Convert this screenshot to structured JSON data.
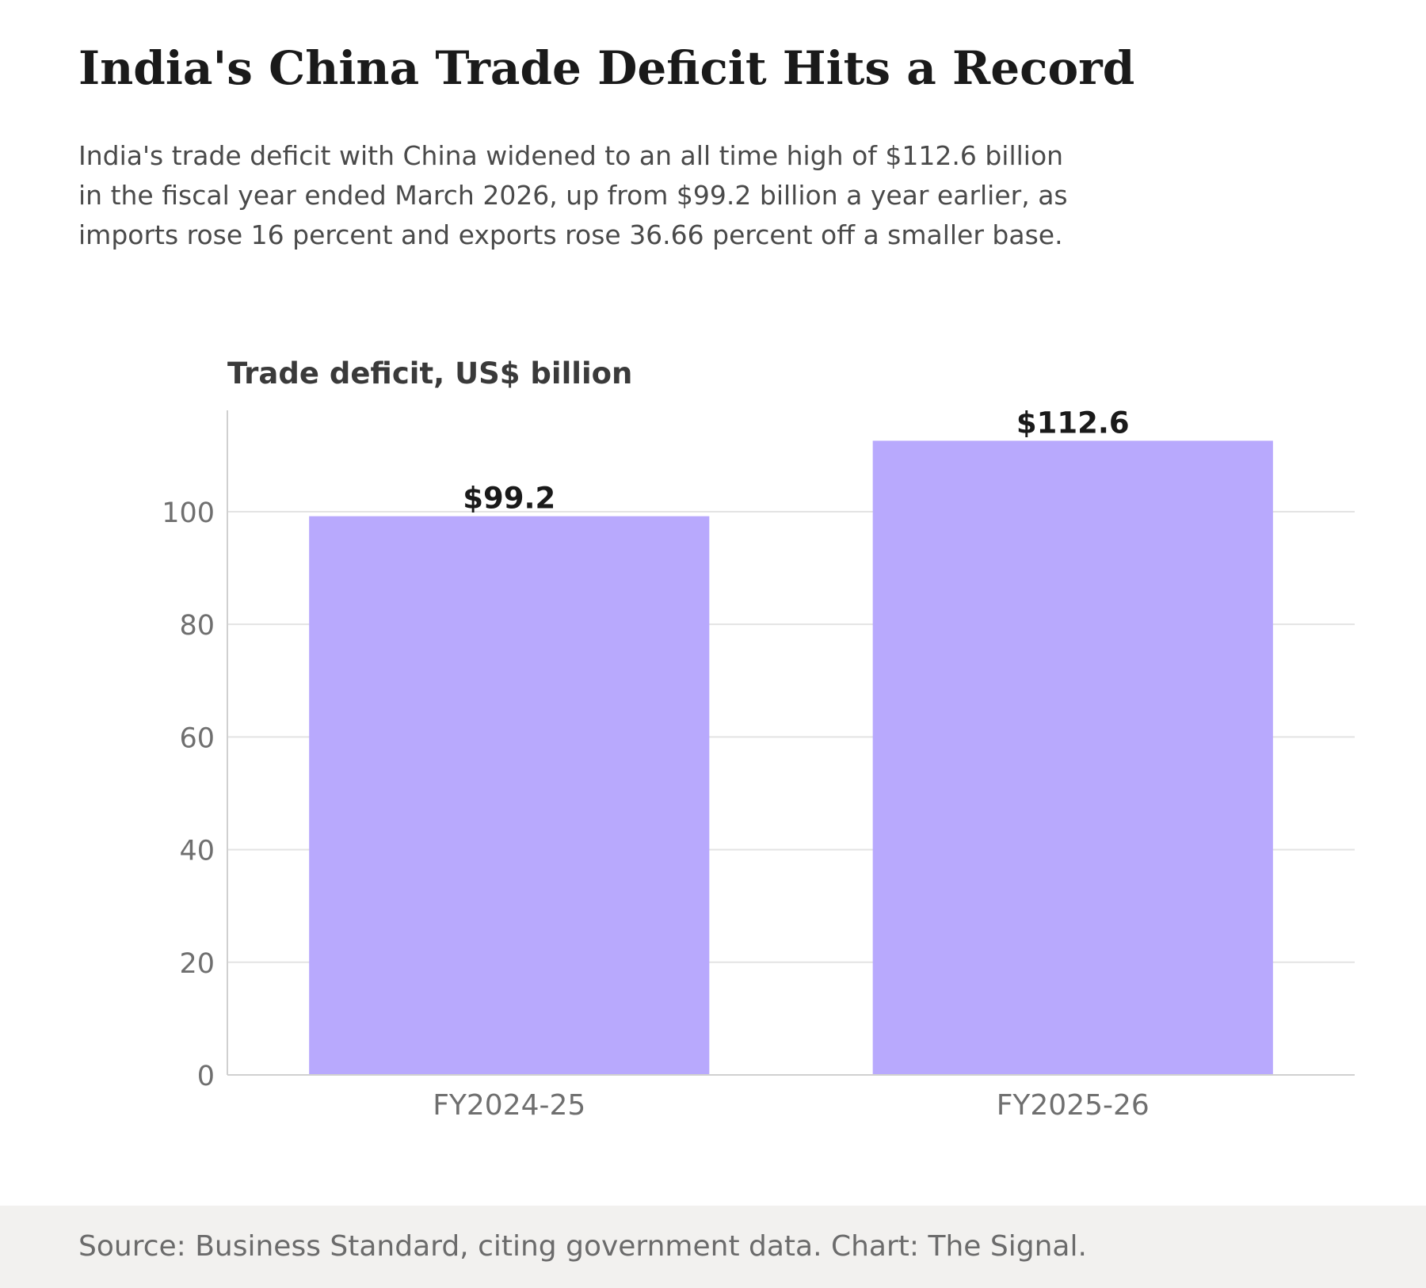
{
  "headline": "India's China Trade Deficit Hits a Record",
  "dek": "India's trade deficit with China widened to an all time high of $112.6 billion in the fiscal year ended March 2026, up from $99.2 billion a year earlier, as imports rose 16 percent and exports rose 36.66 percent off a smaller base.",
  "footer": {
    "source": "Source: Business Standard, citing government data. Chart: The Signal."
  },
  "colors": {
    "bar": "#b8a9fd",
    "grid": "#e3e3e3",
    "axis": "#d0d0d0",
    "tick_text": "#6f6f6f",
    "value_label": "#1a1a1a",
    "chart_title": "#3a3a3a",
    "footer_bg": "#f2f1ef"
  },
  "chart_data": {
    "type": "bar",
    "title": "Trade deficit, US$ billion",
    "xlabel": "",
    "ylabel": "",
    "categories": [
      "FY2024-25",
      "FY2025-26"
    ],
    "values": [
      99.2,
      112.6
    ],
    "value_labels": [
      "$99.2",
      "$112.6"
    ],
    "ylim": [
      0,
      118
    ],
    "yticks": [
      0,
      20,
      40,
      60,
      80,
      100
    ],
    "ytick_labels": [
      "0",
      "20",
      "40",
      "60",
      "80",
      "100"
    ],
    "grid": true,
    "legend": "none"
  }
}
